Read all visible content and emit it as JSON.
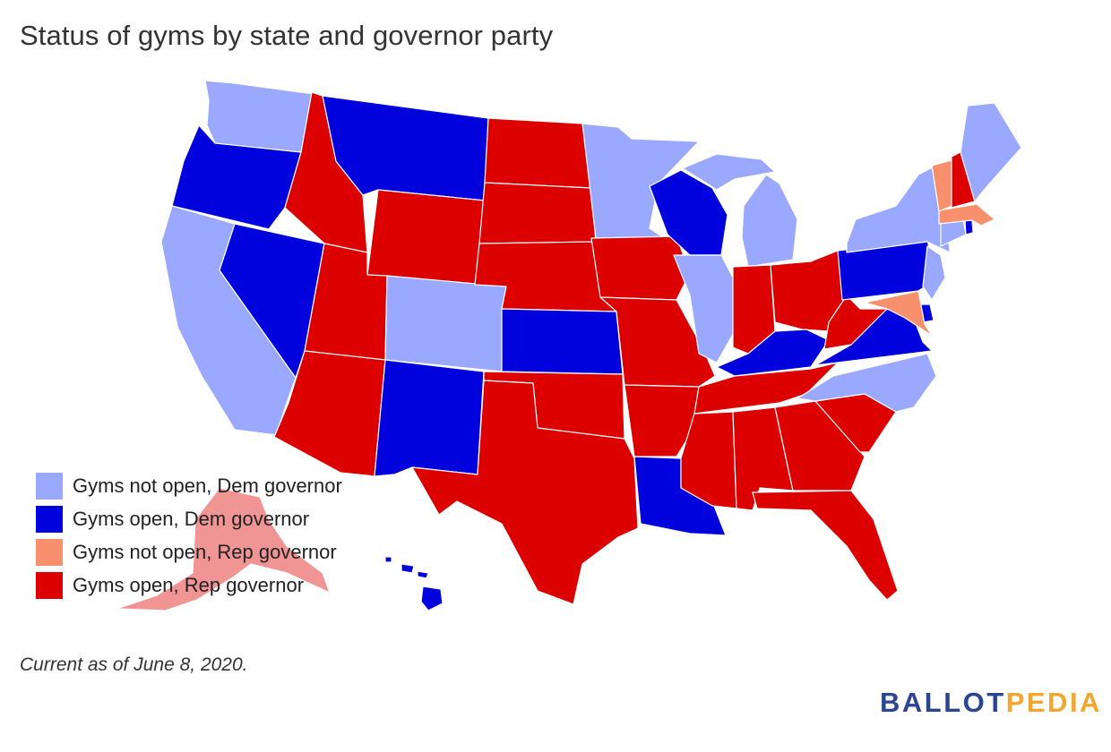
{
  "title": "Status of gyms by state and governor party",
  "legend": [
    {
      "label": "Gyms not open, Dem governor",
      "category": "not_open_dem",
      "color": "#9aa9fd"
    },
    {
      "label": "Gyms open, Dem governor",
      "category": "open_dem",
      "color": "#0002dd"
    },
    {
      "label": "Gyms not open, Rep governor",
      "category": "not_open_rep",
      "color": "#f9906d"
    },
    {
      "label": "Gyms open, Rep governor",
      "category": "open_rep",
      "color": "#dc0000"
    }
  ],
  "states": {
    "WA": "not_open_dem",
    "OR": "open_dem",
    "CA": "not_open_dem",
    "NV": "open_dem",
    "ID": "open_rep",
    "MT": "open_dem",
    "WY": "open_rep",
    "UT": "open_rep",
    "AZ": "open_rep",
    "CO": "not_open_dem",
    "NM": "open_dem",
    "ND": "open_rep",
    "SD": "open_rep",
    "NE": "open_rep",
    "KS": "open_dem",
    "OK": "open_rep",
    "TX": "open_rep",
    "MN": "not_open_dem",
    "IA": "open_rep",
    "MO": "open_rep",
    "AR": "open_rep",
    "LA": "open_dem",
    "WI": "open_dem",
    "IL": "not_open_dem",
    "MI": "not_open_dem",
    "IN": "open_rep",
    "OH": "open_rep",
    "KY": "open_dem",
    "TN": "open_rep",
    "MS": "open_rep",
    "AL": "open_rep",
    "GA": "open_rep",
    "FL": "open_rep",
    "SC": "open_rep",
    "NC": "not_open_dem",
    "VA": "open_dem",
    "WV": "open_rep",
    "PA": "open_dem",
    "NY": "not_open_dem",
    "NJ": "not_open_dem",
    "DE": "open_dem",
    "MD": "not_open_rep",
    "CT": "not_open_dem",
    "RI": "open_dem",
    "MA": "not_open_rep",
    "VT": "not_open_rep",
    "NH": "open_rep",
    "ME": "not_open_dem",
    "AK": "open_rep",
    "HI": "open_dem"
  },
  "note": "Current as of June 8, 2020.",
  "logo": {
    "part1": "BALLOT",
    "part2": "PEDIA"
  }
}
